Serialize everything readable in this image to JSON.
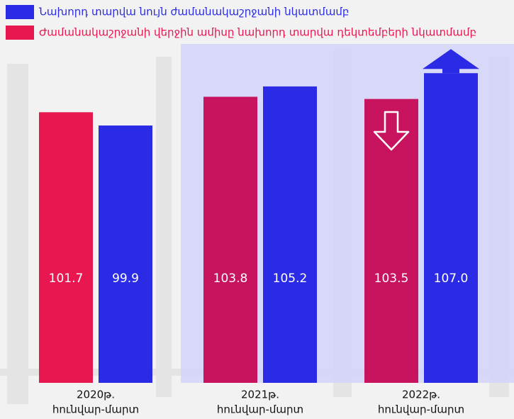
{
  "chart_data": {
    "type": "bar",
    "categories": [
      [
        "2020թ.",
        "հունվար-մարտ"
      ],
      [
        "2021թ.",
        "հունվար-մարտ"
      ],
      [
        "2022թ.",
        "հունվար-մարտ"
      ]
    ],
    "series": [
      {
        "name": "Նախորդ տարվա նույն ժամանակաշրջանի նկատմամբ",
        "color": "#2b2be6",
        "colors": [
          "#2b2be6",
          "#2b2be6",
          "#2b2be6"
        ],
        "values": [
          99.9,
          105.2,
          107.0
        ],
        "value_labels": [
          "99.9",
          "105.2",
          "107.0"
        ]
      },
      {
        "name": "Ժամանակաշրջանի վերջին ամիսը նախորդ տարվա դեկտեմբերի նկատմամբ",
        "color": "#e8174f",
        "colors": [
          "#e8174f",
          "#c8145f",
          "#c8145f"
        ],
        "values": [
          101.7,
          103.8,
          103.5
        ]
      }
    ],
    "ylim": [
      65,
      110
    ]
  }
}
